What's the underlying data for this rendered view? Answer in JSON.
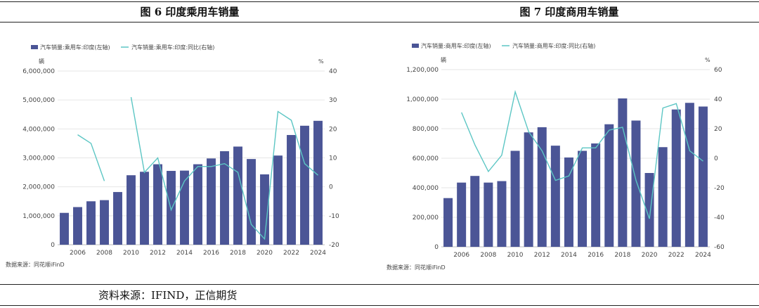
{
  "figures": [
    {
      "title": "图 6  印度乘用车销量"
    },
    {
      "title": "图 7   印度商用车销量"
    }
  ],
  "footer": {
    "source": "资料来源：IFIND，正信期货"
  },
  "colors": {
    "bar": "#4b5596",
    "line": "#5cc6c4",
    "grid": "#e6e6e6",
    "axis_text": "#444444"
  },
  "chart_data": [
    {
      "type": "bar",
      "legend": [
        "汽车销量:乘用车:印度(左轴)",
        "汽车销量:乘用车:印度:同比(右轴)"
      ],
      "y_unit_left": "辆",
      "y_unit_right": "%",
      "source": "数据来源：同花顺iFinD",
      "categories": [
        2005,
        2006,
        2007,
        2008,
        2009,
        2010,
        2011,
        2012,
        2013,
        2014,
        2015,
        2016,
        2017,
        2018,
        2019,
        2020,
        2021,
        2022,
        2023,
        2024
      ],
      "x_tick_labels": [
        "2006",
        "2008",
        "2010",
        "2012",
        "2014",
        "2016",
        "2018",
        "2020",
        "2022",
        "2024"
      ],
      "series": [
        {
          "name": "汽车销量:乘用车:印度(左轴)",
          "axis": "left",
          "kind": "bar",
          "values": [
            1100000,
            1300000,
            1500000,
            1540000,
            1820000,
            2400000,
            2520000,
            2780000,
            2550000,
            2560000,
            2780000,
            2980000,
            3230000,
            3390000,
            2960000,
            2430000,
            3080000,
            3790000,
            4110000,
            4280000
          ]
        },
        {
          "name": "汽车销量:乘用车:印度:同比(右轴)",
          "axis": "right",
          "kind": "line",
          "values": [
            null,
            18,
            15,
            2,
            null,
            31,
            5,
            10,
            -8,
            2,
            7,
            7,
            8,
            5,
            -13,
            -18,
            26,
            23,
            8,
            4
          ]
        }
      ],
      "ylim_left": [
        0,
        6000000
      ],
      "yticks_left": [
        "0",
        "1,000,000",
        "2,000,000",
        "3,000,000",
        "4,000,000",
        "5,000,000",
        "6,000,000"
      ],
      "ylim_right": [
        -20,
        40
      ],
      "yticks_right": [
        "-20",
        "-10",
        "0",
        "10",
        "20",
        "30",
        "40"
      ],
      "legend_position": "top-left",
      "grid": true
    },
    {
      "type": "bar",
      "legend": [
        "汽车销量:商用车:印度(左轴)",
        "汽车销量:商用车:印度:同比(右轴)"
      ],
      "y_unit_left": "辆",
      "y_unit_right": "%",
      "source": "数据来源：同花顺iFinD",
      "categories": [
        2005,
        2006,
        2007,
        2008,
        2009,
        2010,
        2011,
        2012,
        2013,
        2014,
        2015,
        2016,
        2017,
        2018,
        2019,
        2020,
        2021,
        2022,
        2023,
        2024
      ],
      "x_tick_labels": [
        "2006",
        "2008",
        "2010",
        "2012",
        "2014",
        "2016",
        "2018",
        "2020",
        "2022",
        "2024"
      ],
      "series": [
        {
          "name": "汽车销量:商用车:印度(左轴)",
          "axis": "left",
          "kind": "bar",
          "values": [
            330000,
            435000,
            480000,
            435000,
            445000,
            650000,
            775000,
            810000,
            685000,
            605000,
            650000,
            700000,
            830000,
            1005000,
            855000,
            500000,
            675000,
            930000,
            975000,
            950000
          ]
        },
        {
          "name": "汽车销量:商用车:印度:同比(右轴)",
          "axis": "right",
          "kind": "line",
          "values": [
            null,
            31,
            9,
            -9,
            2,
            45,
            18,
            5,
            -15,
            -12,
            7,
            7,
            19,
            21,
            -15,
            -41,
            34,
            37,
            5,
            -2
          ]
        }
      ],
      "ylim_left": [
        0,
        1200000
      ],
      "yticks_left": [
        "0",
        "200,000",
        "400,000",
        "600,000",
        "800,000",
        "1,000,000",
        "1,200,000"
      ],
      "ylim_right": [
        -60,
        60
      ],
      "yticks_right": [
        "-60",
        "-40",
        "-20",
        "0",
        "20",
        "40",
        "60"
      ],
      "legend_position": "top-left",
      "grid": true
    }
  ]
}
